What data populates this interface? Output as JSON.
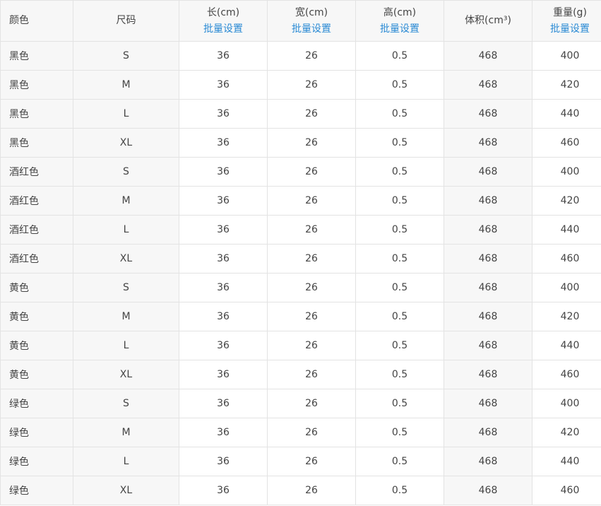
{
  "header": {
    "columns": [
      {
        "label": "颜色"
      },
      {
        "label": "尺码"
      },
      {
        "label": "长(cm)",
        "action": "批量设置"
      },
      {
        "label": "宽(cm)",
        "action": "批量设置"
      },
      {
        "label": "高(cm)",
        "action": "批量设置"
      },
      {
        "label": "体积(cm³)"
      },
      {
        "label": "重量(g)",
        "action": "批量设置"
      }
    ]
  },
  "link_color": "#2a8ad4",
  "rows": [
    [
      "黑色",
      "S",
      "36",
      "26",
      "0.5",
      "468",
      "400"
    ],
    [
      "黑色",
      "M",
      "36",
      "26",
      "0.5",
      "468",
      "420"
    ],
    [
      "黑色",
      "L",
      "36",
      "26",
      "0.5",
      "468",
      "440"
    ],
    [
      "黑色",
      "XL",
      "36",
      "26",
      "0.5",
      "468",
      "460"
    ],
    [
      "酒红色",
      "S",
      "36",
      "26",
      "0.5",
      "468",
      "400"
    ],
    [
      "酒红色",
      "M",
      "36",
      "26",
      "0.5",
      "468",
      "420"
    ],
    [
      "酒红色",
      "L",
      "36",
      "26",
      "0.5",
      "468",
      "440"
    ],
    [
      "酒红色",
      "XL",
      "36",
      "26",
      "0.5",
      "468",
      "460"
    ],
    [
      "黄色",
      "S",
      "36",
      "26",
      "0.5",
      "468",
      "400"
    ],
    [
      "黄色",
      "M",
      "36",
      "26",
      "0.5",
      "468",
      "420"
    ],
    [
      "黄色",
      "L",
      "36",
      "26",
      "0.5",
      "468",
      "440"
    ],
    [
      "黄色",
      "XL",
      "36",
      "26",
      "0.5",
      "468",
      "460"
    ],
    [
      "绿色",
      "S",
      "36",
      "26",
      "0.5",
      "468",
      "400"
    ],
    [
      "绿色",
      "M",
      "36",
      "26",
      "0.5",
      "468",
      "420"
    ],
    [
      "绿色",
      "L",
      "36",
      "26",
      "0.5",
      "468",
      "440"
    ],
    [
      "绿色",
      "XL",
      "36",
      "26",
      "0.5",
      "468",
      "460"
    ]
  ]
}
